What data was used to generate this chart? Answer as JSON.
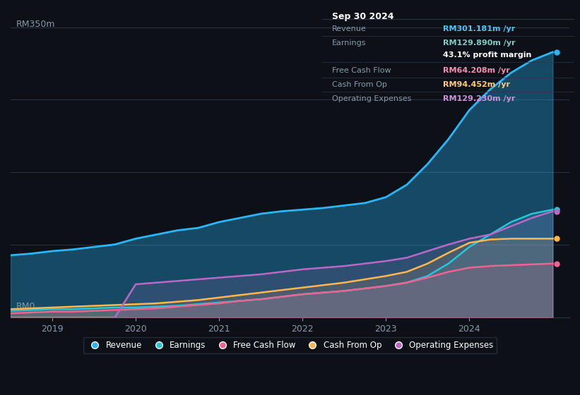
{
  "bg_color": "#0d1117",
  "plot_bg_color": "#0d1117",
  "title": "Sep 30 2024",
  "ylabel_top": "RM350m",
  "ylabel_bottom": "RM0",
  "x_ticks": [
    2019,
    2020,
    2021,
    2022,
    2023,
    2024
  ],
  "y_max": 350,
  "info_box": {
    "date": "Sep 30 2024",
    "rows": [
      {
        "label": "Revenue",
        "value": "RM301.181m /yr",
        "color": "#4fc3f7"
      },
      {
        "label": "Earnings",
        "value": "RM129.890m /yr",
        "color": "#80cbc4"
      },
      {
        "label": "",
        "value": "43.1% profit margin",
        "color": "#ffffff"
      },
      {
        "label": "Free Cash Flow",
        "value": "RM64.208m /yr",
        "color": "#f48fb1"
      },
      {
        "label": "Cash From Op",
        "value": "RM94.452m /yr",
        "color": "#ffcc80"
      },
      {
        "label": "Operating Expenses",
        "value": "RM129.230m /yr",
        "color": "#ce93d8"
      }
    ]
  },
  "series": {
    "revenue": {
      "color": "#29b6f6",
      "fill": true,
      "fill_alpha": 0.35,
      "x": [
        2018.5,
        2018.75,
        2019.0,
        2019.25,
        2019.5,
        2019.75,
        2020.0,
        2020.25,
        2020.5,
        2020.75,
        2021.0,
        2021.25,
        2021.5,
        2021.75,
        2022.0,
        2022.25,
        2022.5,
        2022.75,
        2023.0,
        2023.25,
        2023.5,
        2023.75,
        2024.0,
        2024.25,
        2024.5,
        2024.75,
        2025.0
      ],
      "y": [
        75,
        77,
        80,
        82,
        85,
        88,
        95,
        100,
        105,
        108,
        115,
        120,
        125,
        128,
        130,
        132,
        135,
        138,
        145,
        160,
        185,
        215,
        250,
        275,
        295,
        310,
        320
      ]
    },
    "earnings": {
      "color": "#26c6da",
      "fill": false,
      "x": [
        2018.5,
        2018.75,
        2019.0,
        2019.25,
        2019.5,
        2019.75,
        2020.0,
        2020.25,
        2020.5,
        2020.75,
        2021.0,
        2021.25,
        2021.5,
        2021.75,
        2022.0,
        2022.25,
        2022.5,
        2022.75,
        2023.0,
        2023.25,
        2023.5,
        2023.75,
        2024.0,
        2024.25,
        2024.5,
        2024.75,
        2025.0
      ],
      "y": [
        8,
        9,
        10,
        10,
        11,
        12,
        12,
        13,
        14,
        16,
        18,
        20,
        22,
        25,
        28,
        30,
        32,
        35,
        38,
        42,
        50,
        65,
        85,
        100,
        115,
        125,
        130
      ]
    },
    "free_cash_flow": {
      "color": "#f06292",
      "fill": false,
      "x": [
        2018.5,
        2018.75,
        2019.0,
        2019.25,
        2019.5,
        2019.75,
        2020.0,
        2020.25,
        2020.5,
        2020.75,
        2021.0,
        2021.25,
        2021.5,
        2021.75,
        2022.0,
        2022.25,
        2022.5,
        2022.75,
        2023.0,
        2023.25,
        2023.5,
        2023.75,
        2024.0,
        2024.25,
        2024.5,
        2024.75,
        2025.0
      ],
      "y": [
        5,
        6,
        7,
        7,
        8,
        9,
        10,
        11,
        13,
        15,
        17,
        20,
        22,
        25,
        28,
        30,
        32,
        35,
        38,
        42,
        48,
        55,
        60,
        62,
        63,
        64,
        65
      ]
    },
    "cash_from_op": {
      "color": "#ffb74d",
      "fill": false,
      "x": [
        2018.5,
        2018.75,
        2019.0,
        2019.25,
        2019.5,
        2019.75,
        2020.0,
        2020.25,
        2020.5,
        2020.75,
        2021.0,
        2021.25,
        2021.5,
        2021.75,
        2022.0,
        2022.25,
        2022.5,
        2022.75,
        2023.0,
        2023.25,
        2023.5,
        2023.75,
        2024.0,
        2024.25,
        2024.5,
        2024.75,
        2025.0
      ],
      "y": [
        10,
        11,
        12,
        13,
        14,
        15,
        16,
        17,
        19,
        21,
        24,
        27,
        30,
        33,
        36,
        39,
        42,
        46,
        50,
        55,
        65,
        78,
        90,
        94,
        95,
        95,
        95
      ]
    },
    "operating_expenses": {
      "color": "#ba68c8",
      "fill": false,
      "x": [
        2018.5,
        2018.75,
        2019.0,
        2019.25,
        2019.5,
        2019.75,
        2020.0,
        2020.25,
        2020.5,
        2020.75,
        2021.0,
        2021.25,
        2021.5,
        2021.75,
        2022.0,
        2022.25,
        2022.5,
        2022.75,
        2023.0,
        2023.25,
        2023.5,
        2023.75,
        2024.0,
        2024.25,
        2024.5,
        2024.75,
        2025.0
      ],
      "y": [
        0,
        0,
        0,
        0,
        0,
        0,
        40,
        42,
        44,
        46,
        48,
        50,
        52,
        55,
        58,
        60,
        62,
        65,
        68,
        72,
        80,
        88,
        95,
        100,
        110,
        120,
        128
      ]
    }
  },
  "legend": [
    {
      "label": "Revenue",
      "color": "#29b6f6"
    },
    {
      "label": "Earnings",
      "color": "#26c6da"
    },
    {
      "label": "Free Cash Flow",
      "color": "#f06292"
    },
    {
      "label": "Cash From Op",
      "color": "#ffb74d"
    },
    {
      "label": "Operating Expenses",
      "color": "#ba68c8"
    }
  ]
}
